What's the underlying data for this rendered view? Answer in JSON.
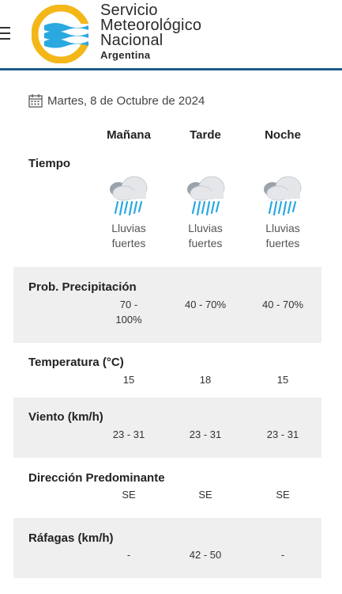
{
  "header": {
    "logo_line1": "Servicio",
    "logo_line2": "Meteorológico",
    "logo_line3": "Nacional",
    "logo_sub": "Argentina",
    "accent": "#1f5c8a"
  },
  "date": "Martes, 8 de Octubre de 2024",
  "periods": [
    "Mañana",
    "Tarde",
    "Noche"
  ],
  "weather": {
    "label": "Tiempo",
    "conditions": [
      "Lluvias fuertes",
      "Lluvias fuertes",
      "Lluvias fuertes"
    ],
    "icon": "heavy-rain-icon"
  },
  "rows": [
    {
      "label": "Prob. Precipitación",
      "values": [
        "70 - 100%",
        "40 - 70%",
        "40 - 70%"
      ]
    },
    {
      "label": "Temperatura (°C)",
      "values": [
        "15",
        "18",
        "15"
      ]
    },
    {
      "label": "Viento (km/h)",
      "values": [
        "23 - 31",
        "23 - 31",
        "23 - 31"
      ]
    },
    {
      "label": "Dirección Predominante",
      "values": [
        "SE",
        "SE",
        "SE"
      ]
    },
    {
      "label": "Ráfagas (km/h)",
      "values": [
        "-",
        "42 - 50",
        "-"
      ]
    }
  ]
}
